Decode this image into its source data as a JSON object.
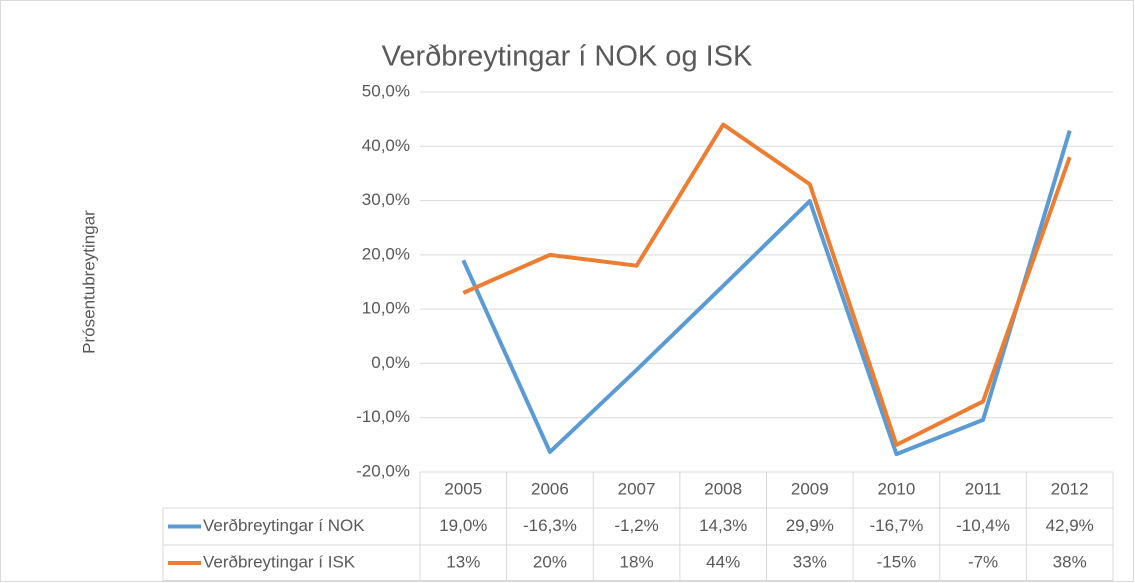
{
  "chart_data": {
    "type": "line",
    "title": "Verðbreytingar í NOK og ISK",
    "ylabel": "Prósentubreytingar",
    "categories": [
      "2005",
      "2006",
      "2007",
      "2008",
      "2009",
      "2010",
      "2011",
      "2012"
    ],
    "series": [
      {
        "name": "Verðbreytingar í NOK",
        "color": "#5b9bd5",
        "values": [
          19.0,
          -16.3,
          -1.2,
          14.3,
          29.9,
          -16.7,
          -10.4,
          42.9
        ],
        "value_labels": [
          "19,0%",
          "-16,3%",
          "-1,2%",
          "14,3%",
          "29,9%",
          "-16,7%",
          "-10,4%",
          "42,9%"
        ]
      },
      {
        "name": "Verðbreytingar í ISK",
        "color": "#ed7d31",
        "values": [
          13,
          20,
          18,
          44,
          33,
          -15,
          -7,
          38
        ],
        "value_labels": [
          "13%",
          "20%",
          "18%",
          "44%",
          "33%",
          "-15%",
          "-7%",
          "38%"
        ]
      }
    ],
    "ylim": [
      -20,
      50
    ],
    "yticks": [
      {
        "value": -20,
        "label": "-20,0%"
      },
      {
        "value": -10,
        "label": "-10,0%"
      },
      {
        "value": 0,
        "label": "0,0%"
      },
      {
        "value": 10,
        "label": "10,0%"
      },
      {
        "value": 20,
        "label": "20,0%"
      },
      {
        "value": 30,
        "label": "30,0%"
      },
      {
        "value": 40,
        "label": "40,0%"
      },
      {
        "value": 50,
        "label": "50,0%"
      }
    ],
    "grid": true
  }
}
